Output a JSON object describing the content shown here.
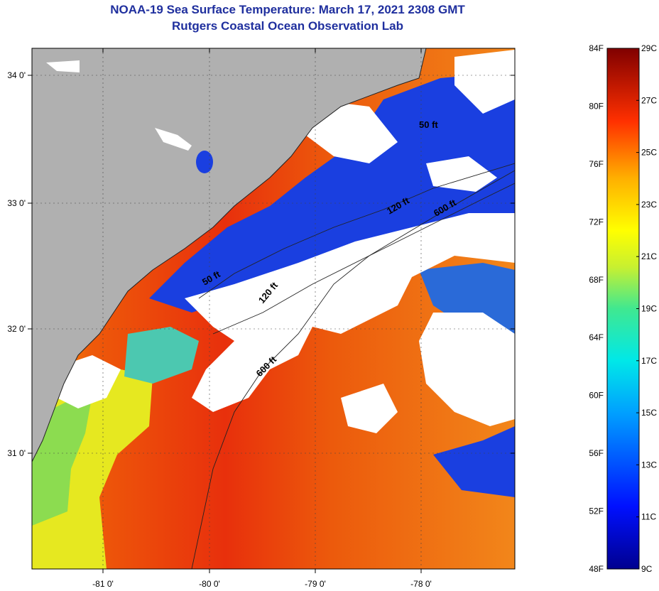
{
  "header": {
    "title": "NOAA-19 Sea Surface Temperature:  March 17, 2021 2308 GMT",
    "subtitle": "Rutgers Coastal Ocean Observation Lab"
  },
  "map": {
    "x_ticks": [
      "-81 0'",
      "-80 0'",
      "-79 0'",
      "-78 0'"
    ],
    "y_ticks": [
      "34 0'",
      "33 0'",
      "32 0'",
      "31 0'"
    ],
    "contours": [
      "50 ft",
      "120 ft",
      "600 ft",
      "50 ft",
      "120 ft",
      "600 ft"
    ],
    "colors": {
      "land": "#b0b0b0",
      "cloud": "#ffffff",
      "cold_water": "#1a3fe0",
      "warm_water": "#e8340e"
    }
  },
  "colorbar": {
    "fahrenheit": [
      "84F",
      "80F",
      "76F",
      "72F",
      "68F",
      "64F",
      "60F",
      "56F",
      "52F",
      "48F"
    ],
    "celsius": [
      "29C",
      "27C",
      "25C",
      "23C",
      "21C",
      "19C",
      "17C",
      "15C",
      "13C",
      "11C",
      "9C"
    ]
  }
}
